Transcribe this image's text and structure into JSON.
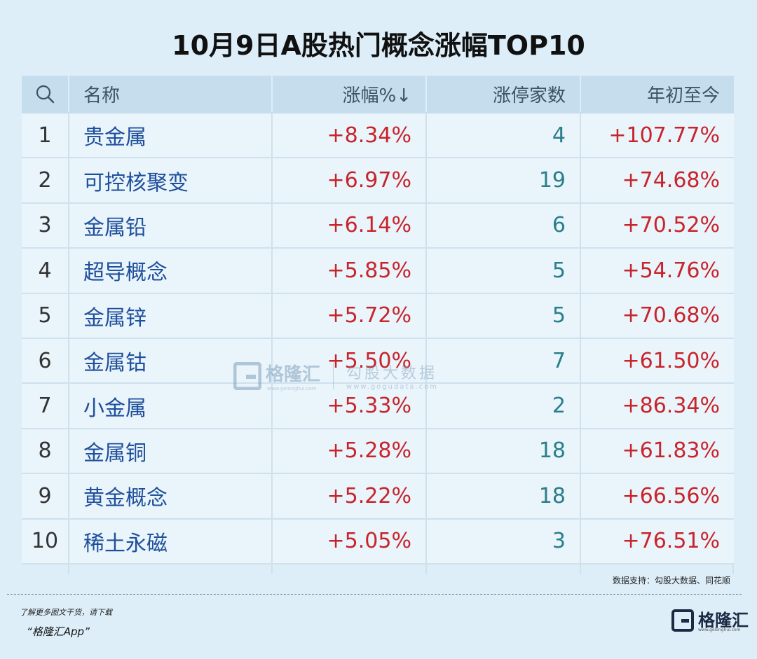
{
  "title": "10月9日A股热门概念涨幅TOP10",
  "source_note": "数据支持：勾股大数据、同花顺",
  "promo_line": "了解更多图文干货，请下载",
  "promo_app": "“格隆汇App”",
  "logo_text": "格隆汇",
  "logo_url": "www.gelonghui.com",
  "watermark": {
    "name": "格隆汇",
    "name_url": "www.gelonghui.com",
    "partner": "勾股大数据",
    "partner_url": "www.gogudata.com"
  },
  "colors": {
    "background": "#ddeef8",
    "header_bg": "#c6dded",
    "name_blue": "#1e4f9c",
    "positive_red": "#c8242b",
    "count_teal": "#2a7f8a"
  },
  "chart_data": {
    "type": "table",
    "title": "10月9日A股热门概念涨幅TOP10",
    "columns": [
      "",
      "名称",
      "涨幅%↓",
      "涨停家数",
      "年初至今"
    ],
    "header_icon": "search-icon",
    "rows": [
      {
        "rank": "1",
        "name": "贵金属",
        "change": "+8.34%",
        "limit_up": "4",
        "ytd": "+107.77%"
      },
      {
        "rank": "2",
        "name": "可控核聚变",
        "change": "+6.97%",
        "limit_up": "19",
        "ytd": "+74.68%"
      },
      {
        "rank": "3",
        "name": "金属铅",
        "change": "+6.14%",
        "limit_up": "6",
        "ytd": "+70.52%"
      },
      {
        "rank": "4",
        "name": "超导概念",
        "change": "+5.85%",
        "limit_up": "5",
        "ytd": "+54.76%"
      },
      {
        "rank": "5",
        "name": "金属锌",
        "change": "+5.72%",
        "limit_up": "5",
        "ytd": "+70.68%"
      },
      {
        "rank": "6",
        "name": "金属钴",
        "change": "+5.50%",
        "limit_up": "7",
        "ytd": "+61.50%"
      },
      {
        "rank": "7",
        "name": "小金属",
        "change": "+5.33%",
        "limit_up": "2",
        "ytd": "+86.34%"
      },
      {
        "rank": "8",
        "name": "金属铜",
        "change": "+5.28%",
        "limit_up": "18",
        "ytd": "+61.83%"
      },
      {
        "rank": "9",
        "name": "黄金概念",
        "change": "+5.22%",
        "limit_up": "18",
        "ytd": "+66.56%"
      },
      {
        "rank": "10",
        "name": "稀土永磁",
        "change": "+5.05%",
        "limit_up": "3",
        "ytd": "+76.51%"
      }
    ]
  }
}
